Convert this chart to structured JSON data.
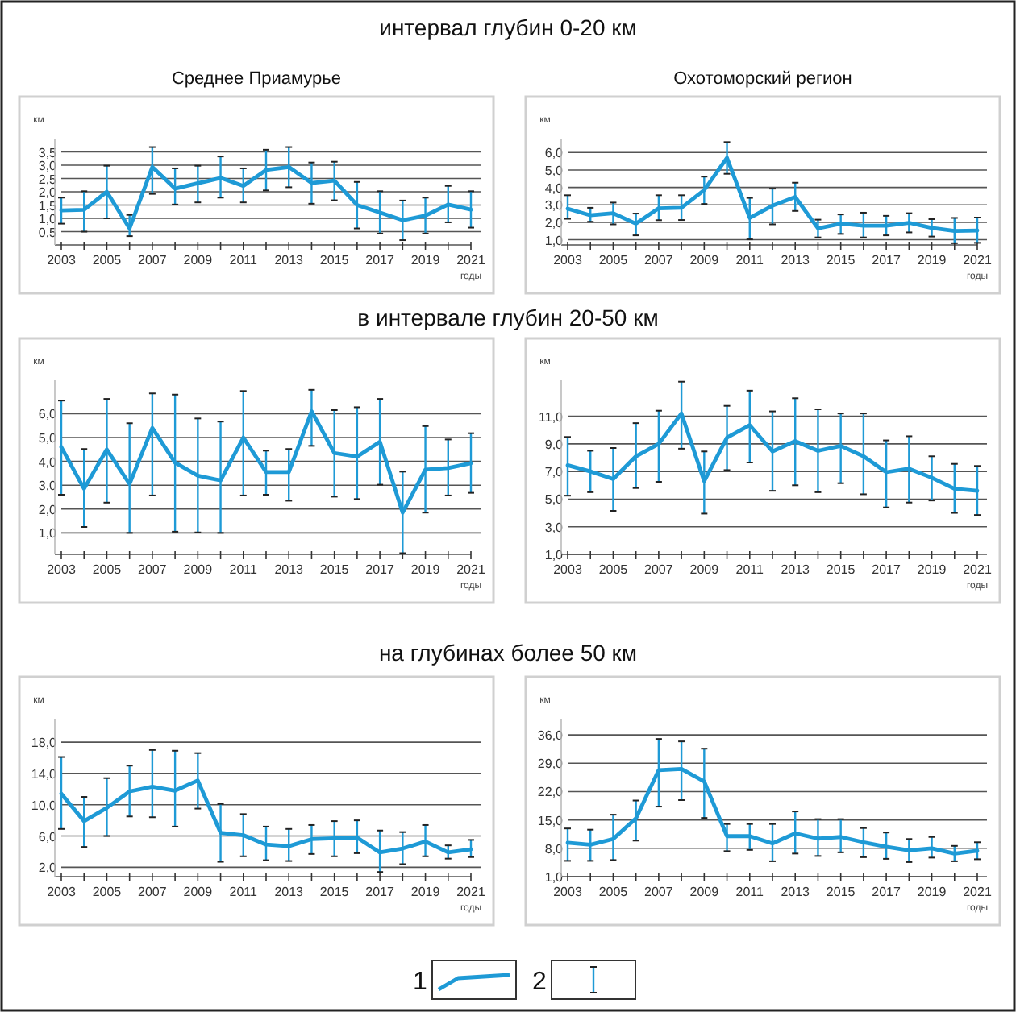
{
  "chart_data": [
    {
      "type": "line",
      "title": "интервал глубин 0-20 км",
      "subtitle": "Среднее Приамурье",
      "ylabel": "км",
      "xlabel": "годы",
      "legend": "bottom",
      "annotations": [
        "2"
      ],
      "grid": "y",
      "marker": "none",
      "line_style": "solid",
      "x": [
        2003,
        2004,
        2005,
        2006,
        2007,
        2008,
        2009,
        2010,
        2011,
        2012,
        2013,
        2014,
        2015,
        2016,
        2017,
        2018,
        2019,
        2020,
        2021
      ],
      "xlim": [
        2003,
        2021
      ],
      "xticks": [
        2003,
        {
          "value": 2004,
          "label": null
        },
        2005,
        {
          "value": 2006,
          "label": null
        },
        2007,
        {
          "value": 2008,
          "label": null
        },
        2009,
        {
          "value": 2010,
          "label": null
        },
        2011,
        {
          "value": 2012,
          "label": null
        },
        2013,
        {
          "value": 2014,
          "label": null
        },
        2015,
        {
          "value": 2016,
          "label": null
        },
        2017,
        {
          "value": 2018,
          "label": null
        },
        2019,
        {
          "value": 2020,
          "label": null
        },
        2021
      ],
      "ylim": [
        0,
        4
      ],
      "yticks": [
        {
          "value": 0.5,
          "label": "0,5"
        },
        {
          "value": 1,
          "label": "1,0"
        },
        {
          "value": 1.5,
          "label": "1,5"
        },
        {
          "value": 2,
          "label": "2,0"
        },
        {
          "value": 2.5,
          "label": "2,5"
        },
        {
          "value": 3,
          "label": "3,0"
        },
        {
          "value": 3.5,
          "label": "3,5"
        }
      ],
      "series": [
        {
          "name": "1",
          "color": "#1e9ad6",
          "values": [
            1.3,
            1.32,
            2.0,
            0.62,
            2.93,
            2.12,
            2.32,
            2.52,
            2.22,
            2.82,
            2.93,
            2.33,
            2.42,
            1.5,
            1.22,
            0.93,
            1.1,
            1.52,
            1.33
          ],
          "errors": [
            [
              0.8,
              1.78
            ],
            [
              0.5,
              2.02
            ],
            [
              1.0,
              2.98
            ],
            [
              0.33,
              1.13
            ],
            [
              1.92,
              3.68
            ],
            [
              1.52,
              2.88
            ],
            [
              1.6,
              2.98
            ],
            [
              1.78,
              3.33
            ],
            [
              1.6,
              2.88
            ],
            [
              2.05,
              3.58
            ],
            [
              2.17,
              3.68
            ],
            [
              1.55,
              3.1
            ],
            [
              1.68,
              3.13
            ],
            [
              0.62,
              2.37
            ],
            [
              0.43,
              2.02
            ],
            [
              0.18,
              1.67
            ],
            [
              0.43,
              1.78
            ],
            [
              0.85,
              2.22
            ],
            [
              0.65,
              2.02
            ]
          ]
        }
      ]
    },
    {
      "type": "line",
      "subtitle": "Охотоморский регион",
      "ylabel": "км",
      "xlabel": "годы",
      "grid": "y",
      "marker": "none",
      "line_style": "solid",
      "x": [
        2003,
        2004,
        2005,
        2006,
        2007,
        2008,
        2009,
        2010,
        2011,
        2012,
        2013,
        2014,
        2015,
        2016,
        2017,
        2018,
        2019,
        2020,
        2021
      ],
      "xlim": [
        2003,
        2021
      ],
      "xticks": [
        2003,
        {
          "value": 2004,
          "label": null
        },
        2005,
        {
          "value": 2006,
          "label": null
        },
        2007,
        {
          "value": 2008,
          "label": null
        },
        2009,
        {
          "value": 2010,
          "label": null
        },
        2011,
        {
          "value": 2012,
          "label": null
        },
        2013,
        {
          "value": 2014,
          "label": null
        },
        2015,
        {
          "value": 2016,
          "label": null
        },
        2017,
        {
          "value": 2018,
          "label": null
        },
        2019,
        {
          "value": 2020,
          "label": null
        },
        2021
      ],
      "ylim": [
        0.7,
        6.8
      ],
      "yticks": [
        {
          "value": 1,
          "label": "1,0"
        },
        {
          "value": 2,
          "label": "2,0"
        },
        {
          "value": 3,
          "label": "3,0"
        },
        {
          "value": 4,
          "label": "4,0"
        },
        {
          "value": 5,
          "label": "5,0"
        },
        {
          "value": 6,
          "label": "6,0"
        }
      ],
      "series": [
        {
          "color": "#1e9ad6",
          "values": [
            2.78,
            2.4,
            2.52,
            1.92,
            2.8,
            2.83,
            3.85,
            5.7,
            2.25,
            2.95,
            3.45,
            1.65,
            1.92,
            1.8,
            1.8,
            1.97,
            1.68,
            1.5,
            1.53
          ],
          "errors": [
            [
              2.2,
              3.55
            ],
            [
              2.03,
              2.83
            ],
            [
              1.88,
              3.13
            ],
            [
              1.25,
              2.5
            ],
            [
              2.12,
              3.55
            ],
            [
              2.13,
              3.55
            ],
            [
              3.05,
              4.62
            ],
            [
              4.78,
              6.6
            ],
            [
              1.02,
              3.4
            ],
            [
              1.88,
              3.93
            ],
            [
              2.65,
              4.27
            ],
            [
              1.13,
              2.15
            ],
            [
              1.33,
              2.45
            ],
            [
              1.13,
              2.55
            ],
            [
              1.25,
              2.37
            ],
            [
              1.42,
              2.52
            ],
            [
              1.18,
              2.18
            ],
            [
              0.8,
              2.25
            ],
            [
              0.82,
              2.27
            ]
          ]
        }
      ]
    },
    {
      "type": "line",
      "title": "в интервале глубин 20-50 км",
      "ylabel": "км",
      "xlabel": "годы",
      "grid": "y",
      "marker": "none",
      "line_style": "solid",
      "x": [
        2003,
        2004,
        2005,
        2006,
        2007,
        2008,
        2009,
        2010,
        2011,
        2012,
        2013,
        2014,
        2015,
        2016,
        2017,
        2018,
        2019,
        2020,
        2021
      ],
      "xlim": [
        2003,
        2021
      ],
      "xticks": [
        2003,
        {
          "value": 2004,
          "label": null
        },
        2005,
        {
          "value": 2006,
          "label": null
        },
        2007,
        {
          "value": 2008,
          "label": null
        },
        2009,
        {
          "value": 2010,
          "label": null
        },
        2011,
        {
          "value": 2012,
          "label": null
        },
        2013,
        {
          "value": 2014,
          "label": null
        },
        2015,
        {
          "value": 2016,
          "label": null
        },
        2017,
        {
          "value": 2018,
          "label": null
        },
        2019,
        {
          "value": 2020,
          "label": null
        },
        2021
      ],
      "ylim": [
        0.1,
        7.4
      ],
      "yticks": [
        {
          "value": 1,
          "label": "1,0"
        },
        {
          "value": 2,
          "label": "2,0"
        },
        {
          "value": 3,
          "label": "3,0"
        },
        {
          "value": 4,
          "label": "4,0"
        },
        {
          "value": 5,
          "label": "5,0"
        },
        {
          "value": 6,
          "label": "6,0"
        }
      ],
      "series": [
        {
          "color": "#1e9ad6",
          "values": [
            4.6,
            2.85,
            4.5,
            3.05,
            5.4,
            3.95,
            3.4,
            3.2,
            5.0,
            3.55,
            3.55,
            6.1,
            4.35,
            4.2,
            4.82,
            1.85,
            3.65,
            3.72,
            3.92
          ],
          "errors": [
            [
              2.6,
              6.55
            ],
            [
              1.25,
              4.52
            ],
            [
              2.27,
              6.62
            ],
            [
              1.0,
              5.6
            ],
            [
              2.57,
              6.85
            ],
            [
              1.05,
              6.8
            ],
            [
              1.02,
              5.8
            ],
            [
              1.0,
              5.67
            ],
            [
              2.57,
              6.95
            ],
            [
              2.6,
              4.45
            ],
            [
              2.35,
              4.52
            ],
            [
              4.65,
              7.0
            ],
            [
              2.52,
              6.15
            ],
            [
              2.42,
              6.27
            ],
            [
              3.02,
              6.62
            ],
            [
              0.15,
              3.57
            ],
            [
              1.85,
              5.48
            ],
            [
              2.57,
              4.92
            ],
            [
              2.68,
              5.18
            ]
          ]
        }
      ]
    },
    {
      "type": "line",
      "ylabel": "км",
      "xlabel": "годы",
      "grid": "y",
      "marker": "none",
      "line_style": "solid",
      "x": [
        2003,
        2004,
        2005,
        2006,
        2007,
        2008,
        2009,
        2010,
        2011,
        2012,
        2013,
        2014,
        2015,
        2016,
        2017,
        2018,
        2019,
        2020,
        2021
      ],
      "xlim": [
        2003,
        2021
      ],
      "xticks": [
        2003,
        {
          "value": 2004,
          "label": null
        },
        2005,
        {
          "value": 2006,
          "label": null
        },
        2007,
        {
          "value": 2008,
          "label": null
        },
        2009,
        {
          "value": 2010,
          "label": null
        },
        2011,
        {
          "value": 2012,
          "label": null
        },
        2013,
        {
          "value": 2014,
          "label": null
        },
        2015,
        {
          "value": 2016,
          "label": null
        },
        2017,
        {
          "value": 2018,
          "label": null
        },
        2019,
        {
          "value": 2020,
          "label": null
        },
        2021
      ],
      "ylim": [
        1,
        13.6
      ],
      "yticks": [
        {
          "value": 1,
          "label": "1,0"
        },
        {
          "value": 3,
          "label": "3,0"
        },
        {
          "value": 5,
          "label": "5,0"
        },
        {
          "value": 7,
          "label": "7,0"
        },
        {
          "value": 9,
          "label": "9,0"
        },
        {
          "value": 11,
          "label": "11,0"
        }
      ],
      "series": [
        {
          "color": "#1e9ad6",
          "values": [
            7.45,
            7.0,
            6.45,
            8.1,
            9.0,
            11.2,
            6.3,
            9.45,
            10.35,
            8.45,
            9.2,
            8.5,
            8.85,
            8.1,
            6.95,
            7.2,
            6.55,
            5.75,
            5.6
          ],
          "errors": [
            [
              5.25,
              9.5
            ],
            [
              5.5,
              8.5
            ],
            [
              4.15,
              8.7
            ],
            [
              5.8,
              10.5
            ],
            [
              6.25,
              11.4
            ],
            [
              8.65,
              13.5
            ],
            [
              3.95,
              8.45
            ],
            [
              7.1,
              11.75
            ],
            [
              7.65,
              12.85
            ],
            [
              5.6,
              11.35
            ],
            [
              6.0,
              12.3
            ],
            [
              5.5,
              11.5
            ],
            [
              6.15,
              11.2
            ],
            [
              5.35,
              11.2
            ],
            [
              4.4,
              9.25
            ],
            [
              4.75,
              9.55
            ],
            [
              4.9,
              8.1
            ],
            [
              4.0,
              7.55
            ],
            [
              3.85,
              7.4
            ]
          ]
        }
      ]
    },
    {
      "type": "line",
      "title": "на глубинах более 50 км",
      "ylabel": "км",
      "xlabel": "годы",
      "grid": "y",
      "marker": "none",
      "line_style": "solid",
      "x": [
        2003,
        2004,
        2005,
        2006,
        2007,
        2008,
        2009,
        2010,
        2011,
        2012,
        2013,
        2014,
        2015,
        2016,
        2017,
        2018,
        2019,
        2020,
        2021
      ],
      "xlim": [
        2003,
        2021
      ],
      "xticks": [
        2003,
        {
          "value": 2004,
          "label": null
        },
        2005,
        {
          "value": 2006,
          "label": null
        },
        2007,
        {
          "value": 2008,
          "label": null
        },
        2009,
        {
          "value": 2010,
          "label": null
        },
        2011,
        {
          "value": 2012,
          "label": null
        },
        2013,
        {
          "value": 2014,
          "label": null
        },
        2015,
        {
          "value": 2016,
          "label": null
        },
        2017,
        {
          "value": 2018,
          "label": null
        },
        2019,
        {
          "value": 2020,
          "label": null
        },
        2021
      ],
      "ylim": [
        0.8,
        21
      ],
      "yticks": [
        {
          "value": 2,
          "label": "2,0"
        },
        {
          "value": 6,
          "label": "6,0"
        },
        {
          "value": 10,
          "label": "10,0"
        },
        {
          "value": 14,
          "label": "14,0"
        },
        {
          "value": 18,
          "label": "18,0"
        }
      ],
      "series": [
        {
          "color": "#1e9ad6",
          "values": [
            11.4,
            7.9,
            9.6,
            11.7,
            12.3,
            11.8,
            13.1,
            6.4,
            6.1,
            4.9,
            4.7,
            5.6,
            5.7,
            5.8,
            3.9,
            4.4,
            5.3,
            3.9,
            4.3
          ],
          "errors": [
            [
              6.9,
              16.1
            ],
            [
              4.6,
              11.0
            ],
            [
              6.0,
              13.4
            ],
            [
              8.5,
              15.0
            ],
            [
              8.4,
              17.0
            ],
            [
              7.2,
              16.9
            ],
            [
              9.5,
              16.6
            ],
            [
              2.7,
              10.1
            ],
            [
              3.4,
              8.8
            ],
            [
              2.9,
              7.2
            ],
            [
              2.8,
              6.9
            ],
            [
              3.7,
              7.4
            ],
            [
              3.4,
              7.9
            ],
            [
              3.8,
              8.0
            ],
            [
              1.4,
              6.7
            ],
            [
              2.4,
              6.5
            ],
            [
              3.4,
              7.4
            ],
            [
              3.1,
              4.8
            ],
            [
              3.3,
              5.5
            ]
          ]
        }
      ]
    },
    {
      "type": "line",
      "ylabel": "км",
      "xlabel": "годы",
      "grid": "y",
      "marker": "none",
      "line_style": "solid",
      "x": [
        2003,
        2004,
        2005,
        2006,
        2007,
        2008,
        2009,
        2010,
        2011,
        2012,
        2013,
        2014,
        2015,
        2016,
        2017,
        2018,
        2019,
        2020,
        2021
      ],
      "xlim": [
        2003,
        2021
      ],
      "xticks": [
        2003,
        {
          "value": 2004,
          "label": null
        },
        2005,
        {
          "value": 2006,
          "label": null
        },
        2007,
        {
          "value": 2008,
          "label": null
        },
        2009,
        {
          "value": 2010,
          "label": null
        },
        2011,
        {
          "value": 2012,
          "label": null
        },
        2013,
        {
          "value": 2014,
          "label": null
        },
        2015,
        {
          "value": 2016,
          "label": null
        },
        2017,
        {
          "value": 2018,
          "label": null
        },
        2019,
        {
          "value": 2020,
          "label": null
        },
        2021
      ],
      "ylim": [
        1,
        40
      ],
      "yticks": [
        {
          "value": 1,
          "label": "1,0"
        },
        {
          "value": 8,
          "label": "8,0"
        },
        {
          "value": 15,
          "label": "15,0"
        },
        {
          "value": 22,
          "label": "22,0"
        },
        {
          "value": 29,
          "label": "29,0"
        },
        {
          "value": 36,
          "label": "36,0"
        }
      ],
      "series": [
        {
          "color": "#1e9ad6",
          "values": [
            9.4,
            8.9,
            10.3,
            15.4,
            27.3,
            27.6,
            24.5,
            11.0,
            11.0,
            9.2,
            11.7,
            10.4,
            10.8,
            9.5,
            8.4,
            7.5,
            8.0,
            6.7,
            7.4
          ],
          "errors": [
            [
              4.9,
              12.9
            ],
            [
              4.9,
              12.6
            ],
            [
              5.1,
              16.3
            ],
            [
              9.9,
              19.8
            ],
            [
              18.3,
              35.0
            ],
            [
              19.9,
              34.4
            ],
            [
              15.5,
              32.6
            ],
            [
              7.3,
              14.0
            ],
            [
              7.6,
              14.0
            ],
            [
              4.8,
              14.0
            ],
            [
              6.7,
              17.1
            ],
            [
              6.1,
              15.2
            ],
            [
              7.0,
              15.2
            ],
            [
              5.8,
              13.0
            ],
            [
              5.4,
              11.9
            ],
            [
              4.6,
              10.3
            ],
            [
              5.7,
              10.8
            ],
            [
              4.8,
              8.6
            ],
            [
              5.3,
              9.5
            ]
          ]
        }
      ]
    }
  ]
}
